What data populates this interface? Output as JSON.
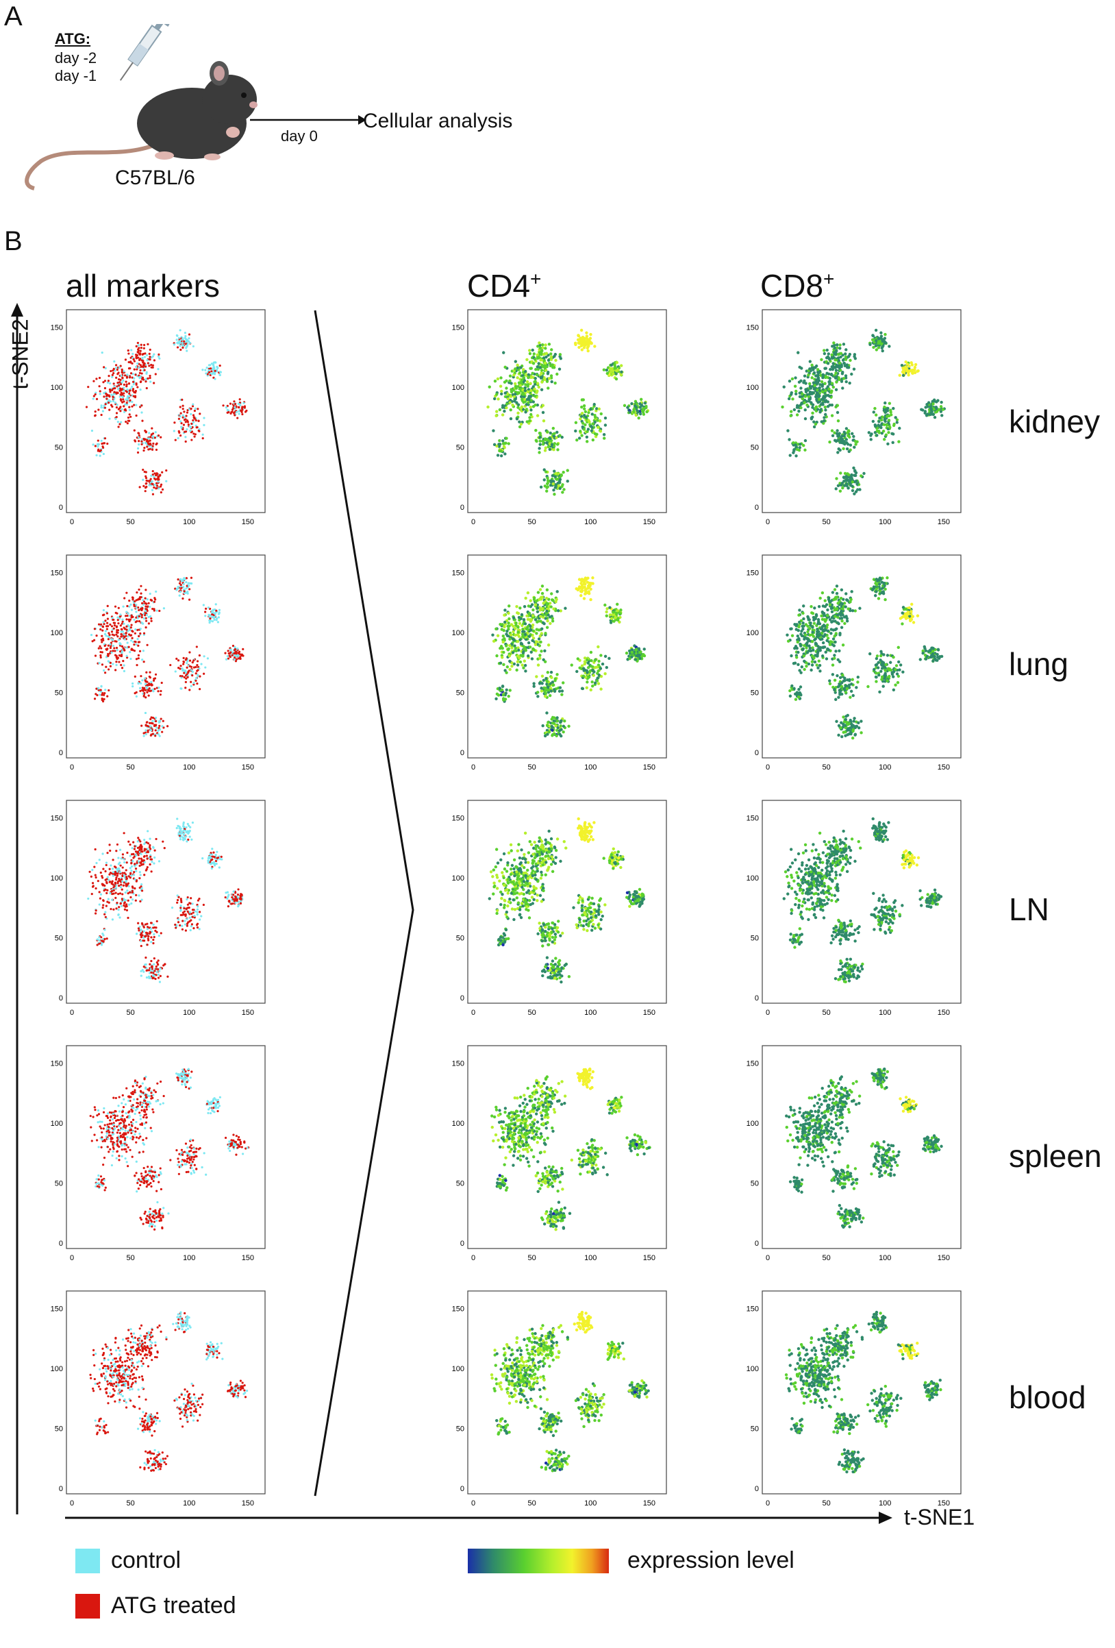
{
  "panel_a": {
    "letter": "A",
    "atg_label": "ATG:",
    "day_minus_2": "day -2",
    "day_minus_1": "day -1",
    "strain": "C57BL/6",
    "day0": "day 0",
    "analysis": "Cellular analysis"
  },
  "panel_b": {
    "letter": "B",
    "col_titles": {
      "all_markers": "all markers",
      "cd4": "CD4",
      "cd4_sup": "+",
      "cd8": "CD8",
      "cd8_sup": "+"
    },
    "row_labels": [
      "kidney",
      "lung",
      "LN",
      "spleen",
      "blood"
    ],
    "y_axis_label": "t-SNE2",
    "x_axis_label": "t-SNE1",
    "legend": {
      "control": "control",
      "atg": "ATG treated",
      "expression": "expression level"
    },
    "colors": {
      "control": "#7ee8f2",
      "atg": "#d9170f",
      "gradient": [
        "#1a2fa8",
        "#2f8a6a",
        "#5ad02f",
        "#b6ef2c",
        "#f2f22c",
        "#f0a020",
        "#d82a10"
      ]
    }
  },
  "chart_data": [
    {
      "type": "scatter",
      "xlabel": "t-SNE1",
      "ylabel": "t-SNE2",
      "xlim": [
        0,
        160
      ],
      "ylim": [
        0,
        160
      ],
      "x_ticks": [
        0,
        50,
        100,
        150
      ],
      "y_ticks": [
        0,
        50,
        100,
        150
      ],
      "grid": false,
      "panels_rows": [
        "kidney",
        "lung",
        "LN",
        "spleen",
        "blood"
      ],
      "panels_cols": [
        "all markers",
        "CD4+",
        "CD8+"
      ]
    }
  ]
}
